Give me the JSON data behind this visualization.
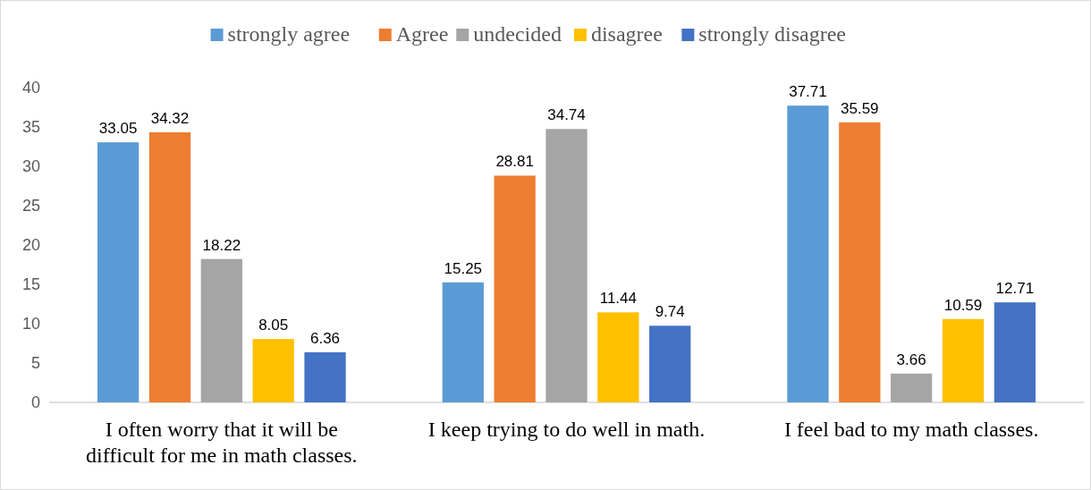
{
  "chart_data": {
    "type": "bar",
    "categories": [
      "I often worry that it will be difficult for me in math classes.",
      "I keep trying to do well in math.",
      "I feel bad to my math classes."
    ],
    "series": [
      {
        "name": "strongly agree",
        "color": "#5b9bd5",
        "values": [
          33.05,
          15.25,
          37.71
        ]
      },
      {
        "name": "Agree",
        "color": "#ed7d31",
        "values": [
          34.32,
          28.81,
          35.59
        ]
      },
      {
        "name": "undecided",
        "color": "#a5a5a5",
        "values": [
          18.22,
          34.74,
          3.66
        ]
      },
      {
        "name": "disagree",
        "color": "#ffc000",
        "values": [
          8.05,
          11.44,
          10.59
        ]
      },
      {
        "name": "strongly disagree",
        "color": "#4472c4",
        "values": [
          6.36,
          9.74,
          12.71
        ]
      }
    ],
    "ylim": [
      0,
      40
    ],
    "yticks": [
      0,
      5,
      10,
      15,
      20,
      25,
      30,
      35,
      40
    ],
    "data_labels": true,
    "legend": "top",
    "grid": false
  }
}
